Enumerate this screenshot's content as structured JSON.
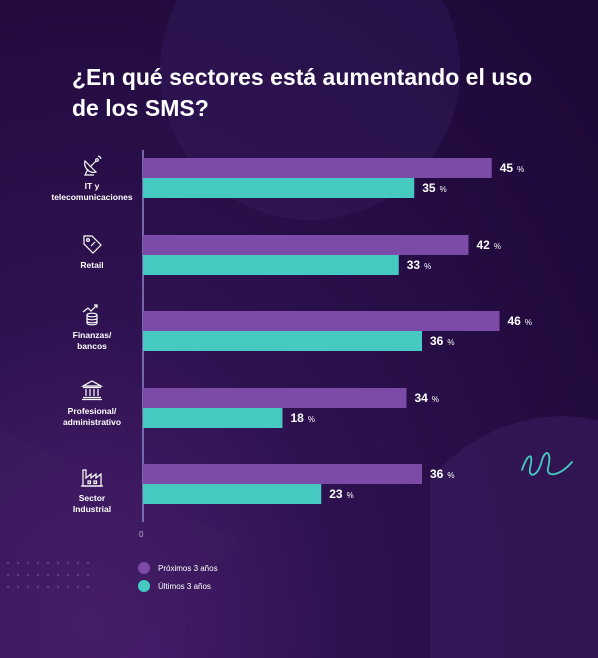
{
  "title": "¿En qué sectores está aumentando el uso de los SMS?",
  "colors": {
    "series_next": "#7c4ba8",
    "series_last": "#45c9c1",
    "axis": "#8d84c9",
    "background": "#2a0f4a"
  },
  "icons": [
    "satellite-dish-icon",
    "price-tag-icon",
    "growth-coins-icon",
    "bank-building-icon",
    "factory-icon"
  ],
  "chart_data": {
    "type": "bar",
    "orientation": "horizontal",
    "categories": [
      "IT y telecomunicaciones",
      "Retail",
      "Finanzas/ bancos",
      "Profesional/ administrativo",
      "Sector Industrial"
    ],
    "series": [
      {
        "name": "Próximos 3 años",
        "values": [
          45,
          42,
          46,
          34,
          36
        ]
      },
      {
        "name": "Últimos 3 años",
        "values": [
          35,
          33,
          36,
          18,
          23
        ]
      }
    ],
    "value_suffix": "%",
    "xmin_label": "0",
    "xlim": [
      0,
      50
    ],
    "legend_position": "bottom-left",
    "grid": false
  },
  "legend": {
    "next": "Próximos 3 años",
    "last": "Últimos 3 años"
  },
  "axis": {
    "zero_label": "0"
  },
  "cat_labels": [
    [
      "IT y",
      "telecomunicaciones"
    ],
    [
      "Retail"
    ],
    [
      "Finanzas/",
      "bancos"
    ],
    [
      "Profesional/",
      "administrativo"
    ],
    [
      "Sector",
      "Industrial"
    ]
  ]
}
